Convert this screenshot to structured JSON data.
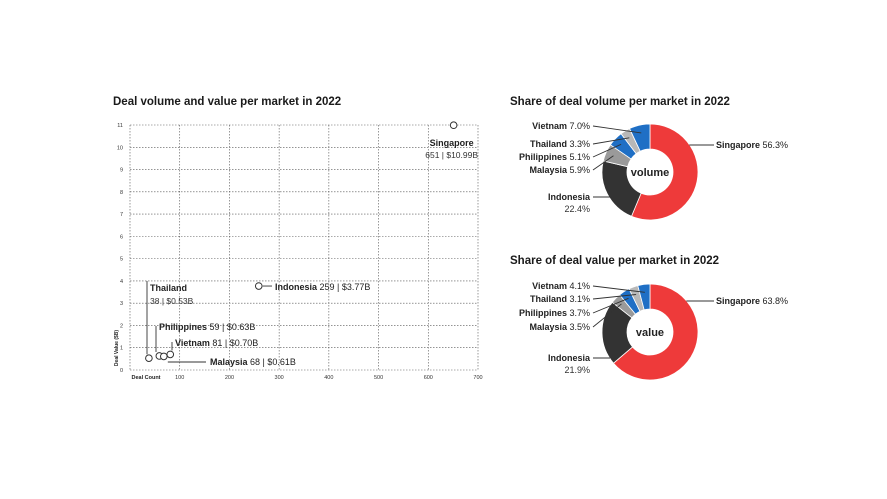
{
  "chart_data": [
    {
      "type": "scatter",
      "title": "Deal volume and value per market in 2022",
      "xlabel": "Deal Count",
      "ylabel": "Deal Value ($B)",
      "xlim": [
        0,
        700
      ],
      "ylim": [
        0,
        11
      ],
      "x_ticks": [
        "100",
        "200",
        "300",
        "400",
        "500",
        "600",
        "700"
      ],
      "y_ticks": [
        "0",
        "1",
        "2",
        "3",
        "4",
        "5",
        "6",
        "7",
        "8",
        "9",
        "10",
        "11"
      ],
      "grid": true,
      "points": [
        {
          "name": "Singapore",
          "detail": "651 | $10.99B",
          "x": 651,
          "y": 10.99
        },
        {
          "name": "Indonesia",
          "detail": "259 | $3.77B",
          "x": 259,
          "y": 3.77
        },
        {
          "name": "Thailand",
          "detail": "38 | $0.53B",
          "x": 38,
          "y": 0.53
        },
        {
          "name": "Philippines",
          "detail": "59 | $0.63B",
          "x": 59,
          "y": 0.63
        },
        {
          "name": "Vietnam",
          "detail": "81 | $0.70B",
          "x": 81,
          "y": 0.7
        },
        {
          "name": "Malaysia",
          "detail": "68 | $0.61B",
          "x": 68,
          "y": 0.61
        }
      ]
    },
    {
      "type": "pie",
      "title": "Share of deal volume per market in 2022",
      "center_label": "volume",
      "slices": [
        {
          "name": "Singapore",
          "label": "56.3%",
          "value": 56.3,
          "color": "#ee3a3a"
        },
        {
          "name": "Indonesia",
          "label": "22.4%",
          "value": 22.4,
          "color": "#333333"
        },
        {
          "name": "Malaysia",
          "label": "5.9%",
          "value": 5.9,
          "color": "#9a9a9a"
        },
        {
          "name": "Philippines",
          "label": "5.1%",
          "value": 5.1,
          "color": "#1f6fc5"
        },
        {
          "name": "Thailand",
          "label": "3.3%",
          "value": 3.3,
          "color": "#b8b8b8"
        },
        {
          "name": "Vietnam",
          "label": "7.0%",
          "value": 7.0,
          "color": "#1f6fc5"
        }
      ]
    },
    {
      "type": "pie",
      "title": "Share of deal value per market in 2022",
      "center_label": "value",
      "slices": [
        {
          "name": "Singapore",
          "label": "63.8%",
          "value": 63.8,
          "color": "#ee3a3a"
        },
        {
          "name": "Indonesia",
          "label": "21.9%",
          "value": 21.9,
          "color": "#333333"
        },
        {
          "name": "Malaysia",
          "label": "3.5%",
          "value": 3.5,
          "color": "#9a9a9a"
        },
        {
          "name": "Philippines",
          "label": "3.7%",
          "value": 3.7,
          "color": "#1f6fc5"
        },
        {
          "name": "Thailand",
          "label": "3.1%",
          "value": 3.1,
          "color": "#b8b8b8"
        },
        {
          "name": "Vietnam",
          "label": "4.1%",
          "value": 4.1,
          "color": "#1f6fc5"
        }
      ]
    }
  ]
}
